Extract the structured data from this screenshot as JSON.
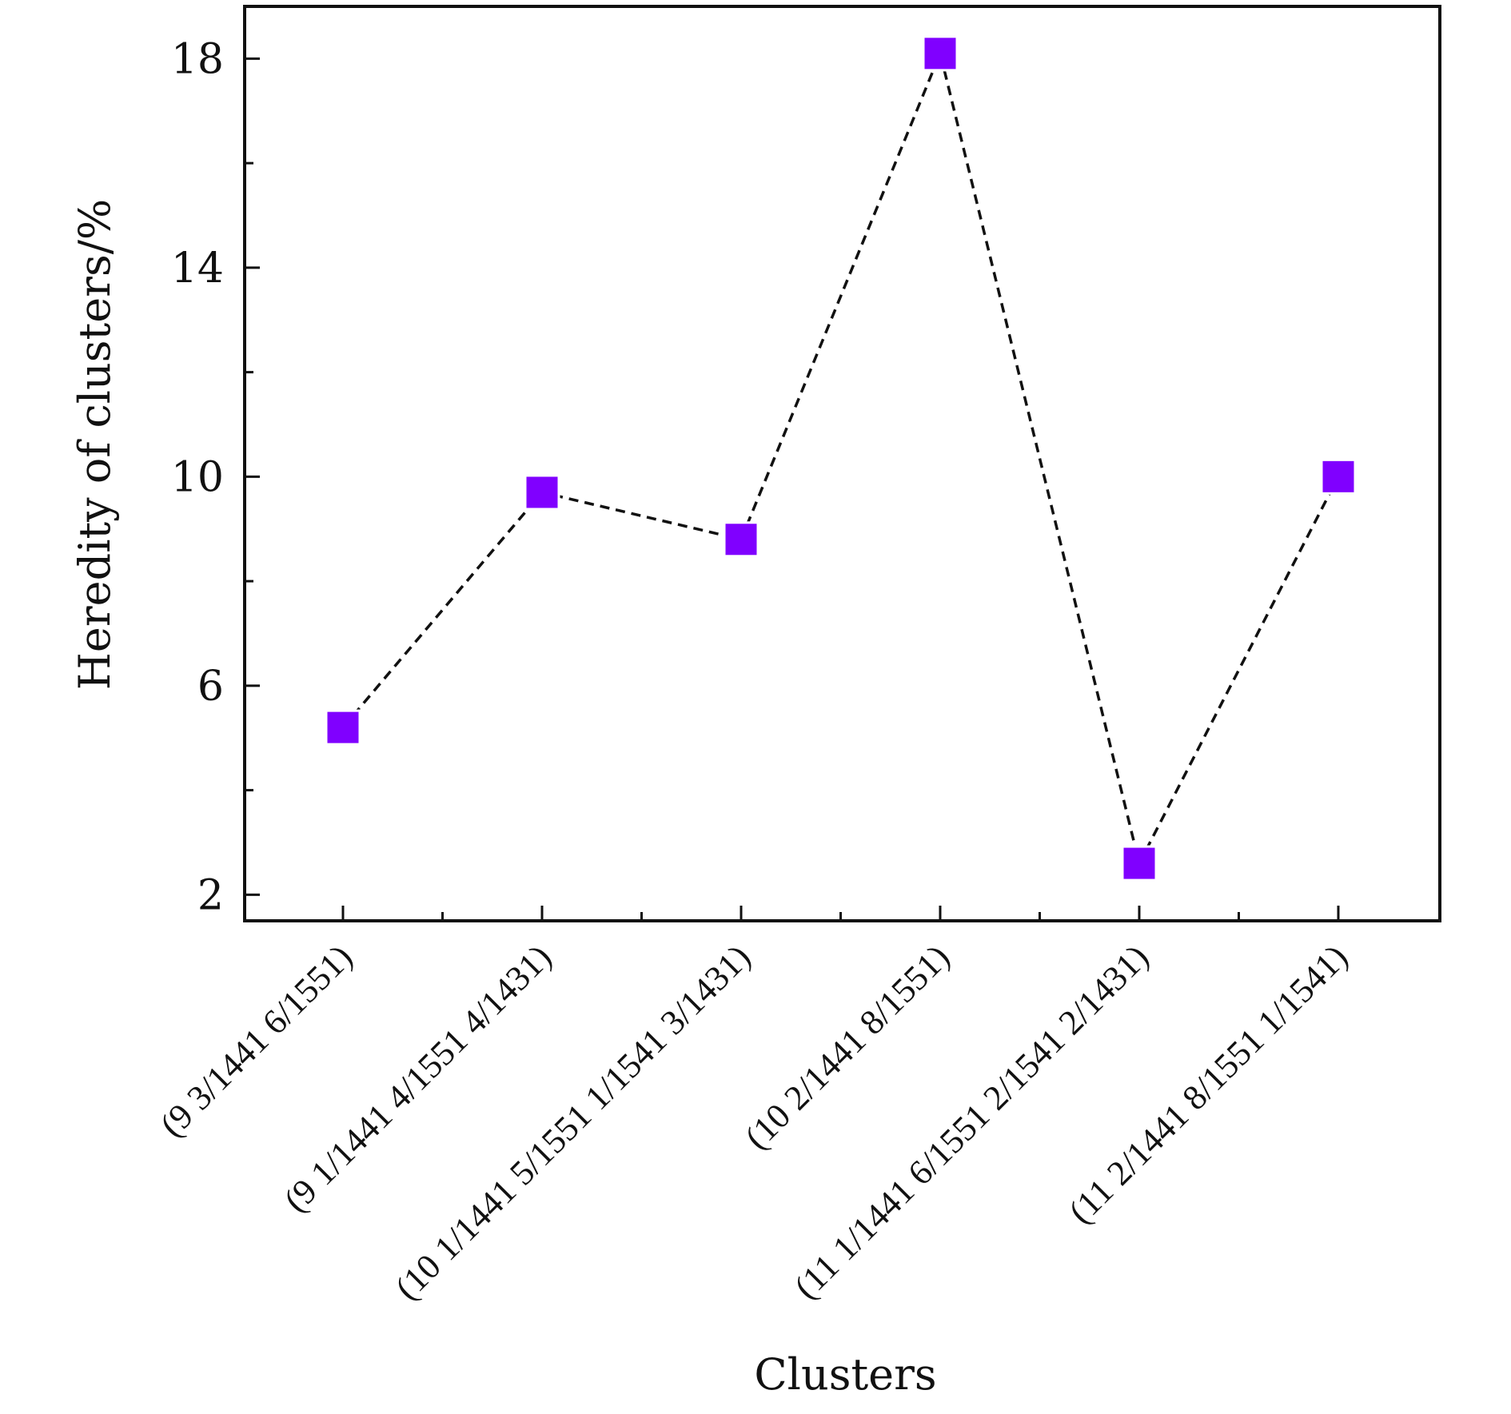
{
  "chart_data": {
    "type": "line",
    "title": "",
    "xlabel": "Clusters",
    "ylabel": "Heredity of clusters/%",
    "ylim": [
      1.5,
      19
    ],
    "y_major_ticks": [
      2,
      6,
      10,
      14,
      18
    ],
    "y_minor_ticks": [
      4,
      8,
      12,
      16
    ],
    "categories": [
      "(9 3/1441 6/1551)",
      "(9 1/1441 4/1551 4/1431)",
      "(10 1/1441 5/1551 1/1541 3/1431)",
      "(10 2/1441 8/1551)",
      "(11 1/1441 6/1551 2/1541 2/1431)",
      "(11 2/1441 8/1551 1/1541)"
    ],
    "series": [
      {
        "name": "Heredity",
        "values": [
          5.2,
          9.7,
          8.8,
          18.1,
          2.6,
          10.0
        ],
        "marker": "square",
        "line_style": "dashed",
        "color": "#8000ff"
      }
    ],
    "grid": false,
    "legend": "none"
  }
}
